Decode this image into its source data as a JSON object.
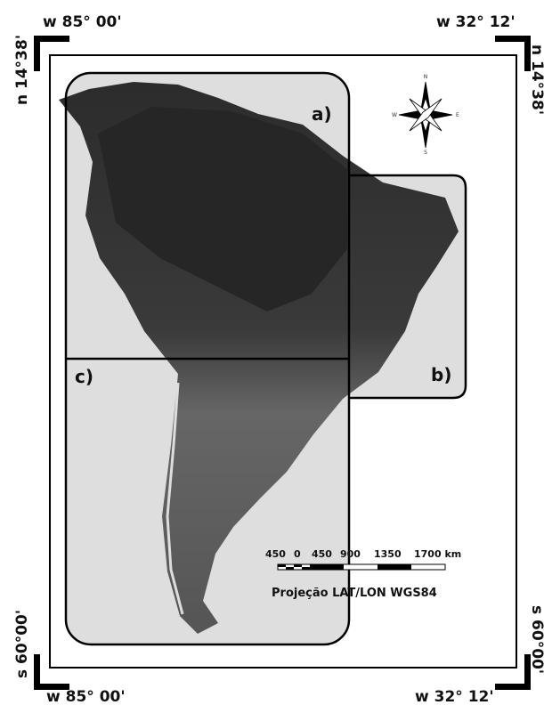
{
  "corners": {
    "top_left": {
      "lon": "w 85° 00'",
      "lat": "n 14°38'"
    },
    "top_right": {
      "lon": "w 32° 12'",
      "lat": "n 14°38'"
    },
    "bottom_left": {
      "lon": "w 85° 00'",
      "lat": "s 60°00'"
    },
    "bottom_right": {
      "lon": "w 32° 12'",
      "lat": "s 60°00'"
    }
  },
  "regions": [
    "a)",
    "b)",
    "c)"
  ],
  "compass": {
    "n": "N",
    "s": "S",
    "e": "E",
    "w": "W"
  },
  "scale": {
    "labels": [
      "450",
      "0",
      "450",
      "900",
      "1350",
      "1700 km"
    ]
  },
  "projection": "Projeção LAT/LON WGS84"
}
